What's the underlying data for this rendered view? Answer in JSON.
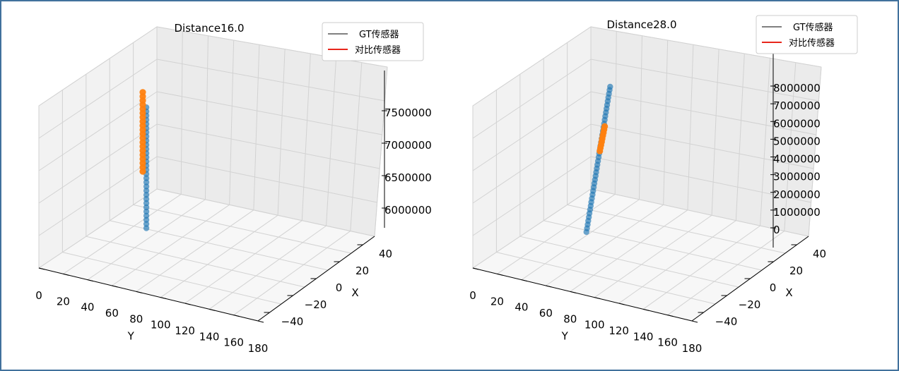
{
  "colors": {
    "gt_line": "#808080",
    "cmp_line": "#e8261b",
    "blue_points": "#1f77b4",
    "orange_points": "#ff7f0e",
    "frame_border": "#41719c"
  },
  "chart_data": [
    {
      "type": "scatter",
      "title": "Distance16.0",
      "xlabel": "X",
      "ylabel": "Y",
      "legend": {
        "placement": "top-right",
        "entries": [
          "GT传感器",
          "对比传感器"
        ]
      },
      "y_ticks": [
        "0",
        "20",
        "40",
        "60",
        "80",
        "100",
        "120",
        "140",
        "160",
        "180"
      ],
      "x_ticks": [
        "−40",
        "−20",
        "0",
        "20",
        "40"
      ],
      "z_ticks": [
        "6000000",
        "6500000",
        "7000000",
        "7500000"
      ],
      "y_range": [
        0,
        180
      ],
      "x_range": [
        -50,
        50
      ],
      "z_range": [
        5700000,
        7900000
      ],
      "grid": true,
      "series": [
        {
          "name": "GT传感器",
          "color": "#1f77b4",
          "x": [
            5,
            5,
            5,
            5,
            5,
            5,
            5,
            5,
            5,
            5,
            5,
            5,
            5,
            5,
            5,
            5,
            5,
            5,
            5,
            5,
            5,
            5,
            5,
            5,
            5,
            5,
            5,
            5,
            5,
            5
          ],
          "y": [
            35,
            35,
            35,
            35,
            35,
            35,
            35,
            35,
            35,
            35,
            35,
            35,
            35,
            35,
            35,
            35,
            35,
            35,
            35,
            35,
            35,
            35,
            35,
            35,
            35,
            35,
            35,
            35,
            35,
            35
          ],
          "z": [
            5780000,
            5830000,
            5880000,
            5930000,
            5980000,
            6030000,
            6080000,
            6130000,
            6180000,
            6230000,
            6280000,
            6330000,
            6380000,
            6430000,
            6480000,
            6530000,
            6580000,
            6630000,
            6680000,
            6730000,
            6780000,
            6830000,
            6880000,
            6930000,
            6980000,
            7030000,
            7080000,
            7130000,
            7180000,
            7230000
          ]
        },
        {
          "name": "对比传感器",
          "color": "#ff7f0e",
          "x": [
            5,
            5,
            5,
            5,
            5,
            5,
            5,
            5,
            5,
            5,
            5,
            5,
            5,
            5,
            5,
            5,
            5,
            5,
            5,
            5
          ],
          "y": [
            32,
            32,
            32,
            32,
            32,
            32,
            32,
            32,
            32,
            32,
            32,
            32,
            32,
            32,
            32,
            32,
            32,
            32,
            32,
            32
          ],
          "z": [
            6450000,
            6500000,
            6550000,
            6600000,
            6650000,
            6700000,
            6750000,
            6800000,
            6850000,
            6900000,
            6950000,
            7000000,
            7050000,
            7100000,
            7150000,
            7200000,
            7250000,
            7300000,
            7350000,
            7400000
          ]
        }
      ]
    },
    {
      "type": "scatter",
      "title": "Distance28.0",
      "xlabel": "X",
      "ylabel": "Y",
      "legend": {
        "placement": "top-right",
        "entries": [
          "GT传感器",
          "对比传感器"
        ]
      },
      "y_ticks": [
        "0",
        "20",
        "40",
        "60",
        "80",
        "100",
        "120",
        "140",
        "160",
        "180"
      ],
      "x_ticks": [
        "−40",
        "−20",
        "0",
        "20",
        "40"
      ],
      "z_ticks": [
        "0",
        "1000000",
        "2000000",
        "3000000",
        "4000000",
        "5000000",
        "6000000",
        "7000000",
        "8000000"
      ],
      "y_range": [
        0,
        180
      ],
      "x_range": [
        -50,
        50
      ],
      "z_range": [
        -200000,
        8300000
      ],
      "grid": true,
      "series": [
        {
          "name": "GT传感器",
          "color": "#1f77b4",
          "x": [
            5,
            5,
            5,
            5,
            5,
            5,
            5,
            5,
            5,
            5,
            5,
            5,
            5,
            5,
            5,
            5,
            5,
            5,
            5,
            5,
            5,
            5,
            5,
            5,
            5,
            5,
            5,
            5,
            5,
            5,
            5,
            5,
            5,
            5,
            5,
            5,
            5,
            5,
            5,
            5
          ],
          "y": [
            40,
            40.5,
            41,
            41.5,
            42,
            42.5,
            43,
            43.5,
            44,
            44.5,
            45,
            45.5,
            46,
            46.5,
            47,
            47.5,
            48,
            48.5,
            49,
            49.5,
            50,
            50.5,
            51,
            51.5,
            52,
            52.5,
            53,
            53.5,
            54,
            54.5,
            55,
            55.5,
            56,
            56.5,
            57,
            57.5,
            58,
            58.5,
            59,
            59.5
          ],
          "z": [
            0,
            180000,
            360000,
            540000,
            720000,
            900000,
            1080000,
            1260000,
            1440000,
            1620000,
            1800000,
            1980000,
            2160000,
            2340000,
            2520000,
            2700000,
            2880000,
            3060000,
            3240000,
            3420000,
            3600000,
            3780000,
            3960000,
            4140000,
            4320000,
            4500000,
            4680000,
            4860000,
            5040000,
            5220000,
            5400000,
            5580000,
            5760000,
            5940000,
            6120000,
            6300000,
            6480000,
            6660000,
            6840000,
            7000000
          ]
        },
        {
          "name": "对比传感器",
          "color": "#ff7f0e",
          "x": [
            5,
            5,
            5,
            5,
            5,
            5,
            5,
            5,
            5
          ],
          "y": [
            51,
            51.5,
            52,
            52.5,
            53,
            53.5,
            54,
            54.5,
            55
          ],
          "z": [
            3900000,
            4050000,
            4200000,
            4350000,
            4500000,
            4650000,
            4800000,
            4950000,
            5100000
          ]
        }
      ]
    }
  ]
}
